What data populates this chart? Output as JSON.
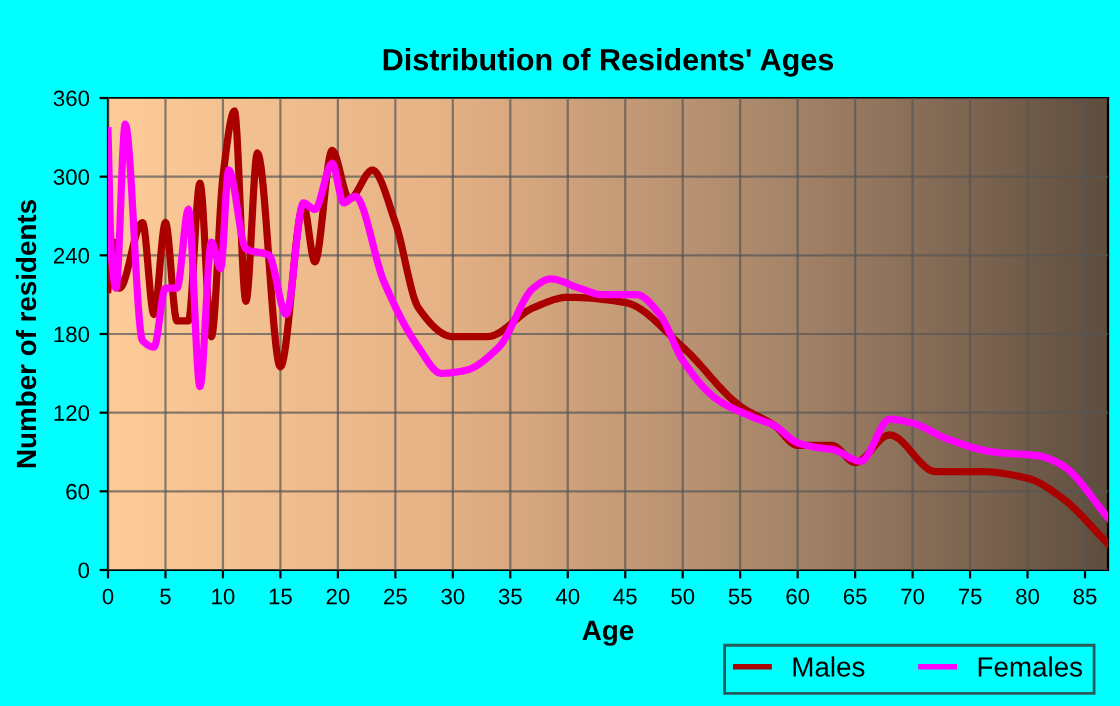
{
  "chart_data": {
    "type": "line",
    "title": "Distribution of Residents' Ages",
    "xlabel": "Age",
    "ylabel": "Number of residents",
    "xlim": [
      0,
      87
    ],
    "xticks": [
      0,
      5,
      10,
      15,
      20,
      25,
      30,
      35,
      40,
      45,
      50,
      55,
      60,
      65,
      70,
      75,
      80,
      85
    ],
    "ylim": [
      0,
      360
    ],
    "yticks": [
      0,
      60,
      120,
      180,
      240,
      300,
      360
    ],
    "grid": true,
    "legend": "bottom right",
    "marker": "none",
    "line_style": "solid",
    "series": [
      {
        "name": "Males",
        "color": "#aa0000",
        "x": [
          0,
          0.5,
          1,
          3,
          4,
          5,
          6,
          7,
          8,
          9,
          10,
          11,
          12,
          13,
          15,
          17,
          18,
          19.5,
          21,
          23,
          25,
          27,
          30,
          33,
          37,
          40,
          45,
          50,
          55,
          58,
          60,
          63,
          65,
          68,
          72,
          76,
          80,
          83,
          87
        ],
        "values": [
          214,
          250,
          215,
          265,
          195,
          265,
          190,
          190,
          295,
          178,
          300,
          350,
          205,
          318,
          155,
          278,
          235,
          320,
          283,
          305,
          265,
          200,
          178,
          178,
          200,
          208,
          204,
          170,
          125,
          110,
          95,
          95,
          82,
          103,
          75,
          75,
          70,
          55,
          20
        ]
      },
      {
        "name": "Females",
        "color": "#ff00ff",
        "x": [
          0,
          0.3,
          0.7,
          1.5,
          3,
          4,
          5,
          6,
          7,
          8,
          9,
          9.8,
          10.5,
          12,
          14,
          15.5,
          17,
          18,
          19.5,
          20.5,
          21.5,
          24,
          27,
          29,
          31,
          34,
          37,
          38.5,
          41,
          43,
          46,
          48,
          50,
          53,
          56,
          58,
          60,
          62,
          63,
          65.5,
          68,
          70,
          73,
          77,
          81,
          83,
          87
        ],
        "values": [
          335,
          240,
          215,
          340,
          175,
          170,
          215,
          215,
          275,
          140,
          250,
          230,
          305,
          245,
          240,
          195,
          280,
          275,
          310,
          280,
          285,
          220,
          170,
          150,
          152,
          170,
          215,
          222,
          215,
          210,
          210,
          195,
          160,
          130,
          117,
          110,
          97,
          93,
          92,
          83,
          115,
          112,
          100,
          90,
          87,
          80,
          40
        ]
      }
    ]
  }
}
